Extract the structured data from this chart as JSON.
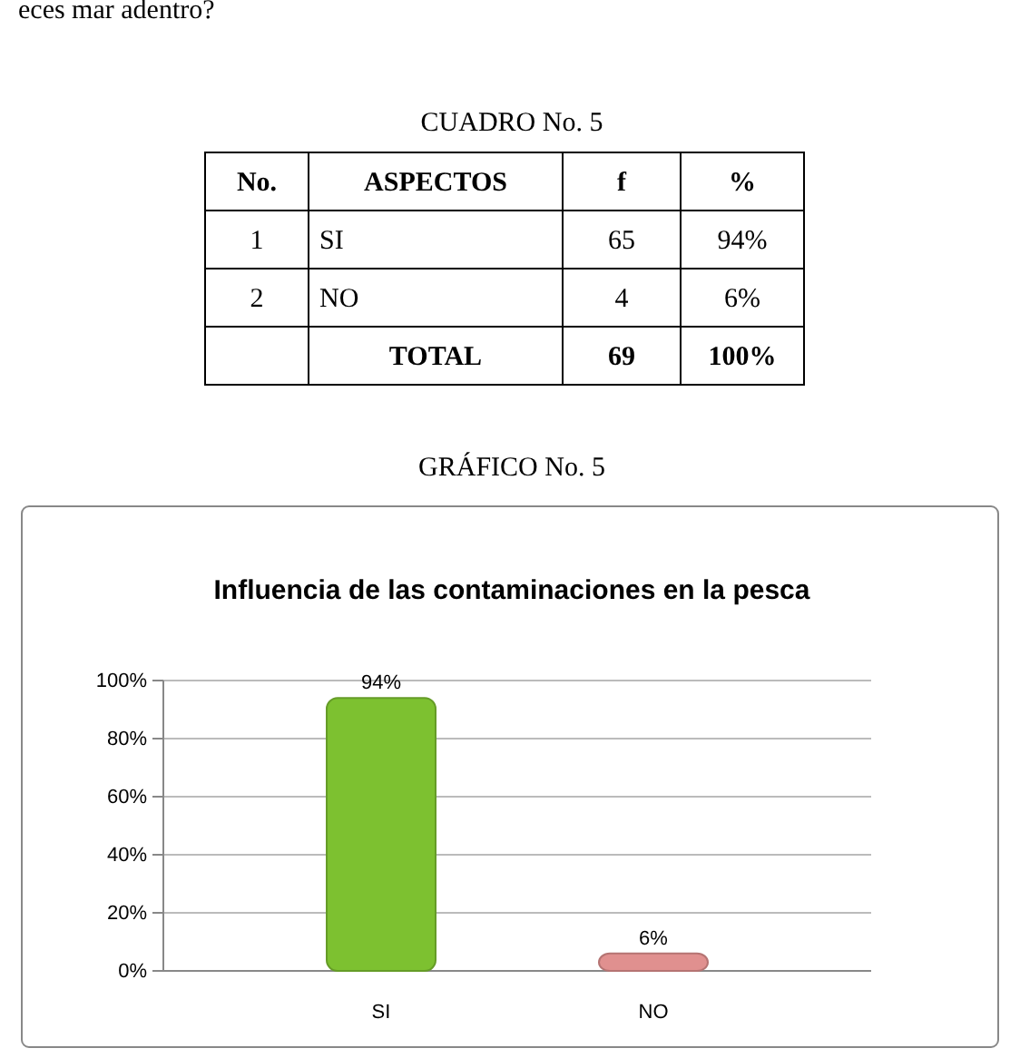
{
  "chart_data": [
    {
      "type": "other",
      "title": "CUADRO No. 5",
      "annotations": [
        "eces mar adentro?"
      ],
      "categories": [
        "No.",
        "ASPECTOS",
        "f",
        "%"
      ],
      "cells": [
        [
          "1",
          "SI",
          "65",
          "94%"
        ],
        [
          "2",
          "NO",
          "4",
          "6%"
        ],
        [
          null,
          "TOTAL",
          "69",
          "100%"
        ]
      ]
    },
    {
      "type": "bar",
      "title": "Influencia de las contaminaciones en la pesca",
      "annotations": [
        "GRÁFICO No. 5"
      ],
      "categories": [
        "SI",
        "NO"
      ],
      "series": [
        {
          "values": [
            94,
            6
          ],
          "colors": [
            "#7dc130",
            "#e0908f"
          ],
          "value_labels": [
            "94%",
            "6%"
          ]
        }
      ],
      "ylim": [
        0,
        100
      ],
      "yticks": [
        {
          "value": 0,
          "label": "0%"
        },
        {
          "value": 20,
          "label": "20%"
        },
        {
          "value": 40,
          "label": "40%"
        },
        {
          "value": 60,
          "label": "60%"
        },
        {
          "value": 80,
          "label": "80%"
        },
        {
          "value": 100,
          "label": "100%"
        }
      ],
      "grid": "y"
    }
  ]
}
